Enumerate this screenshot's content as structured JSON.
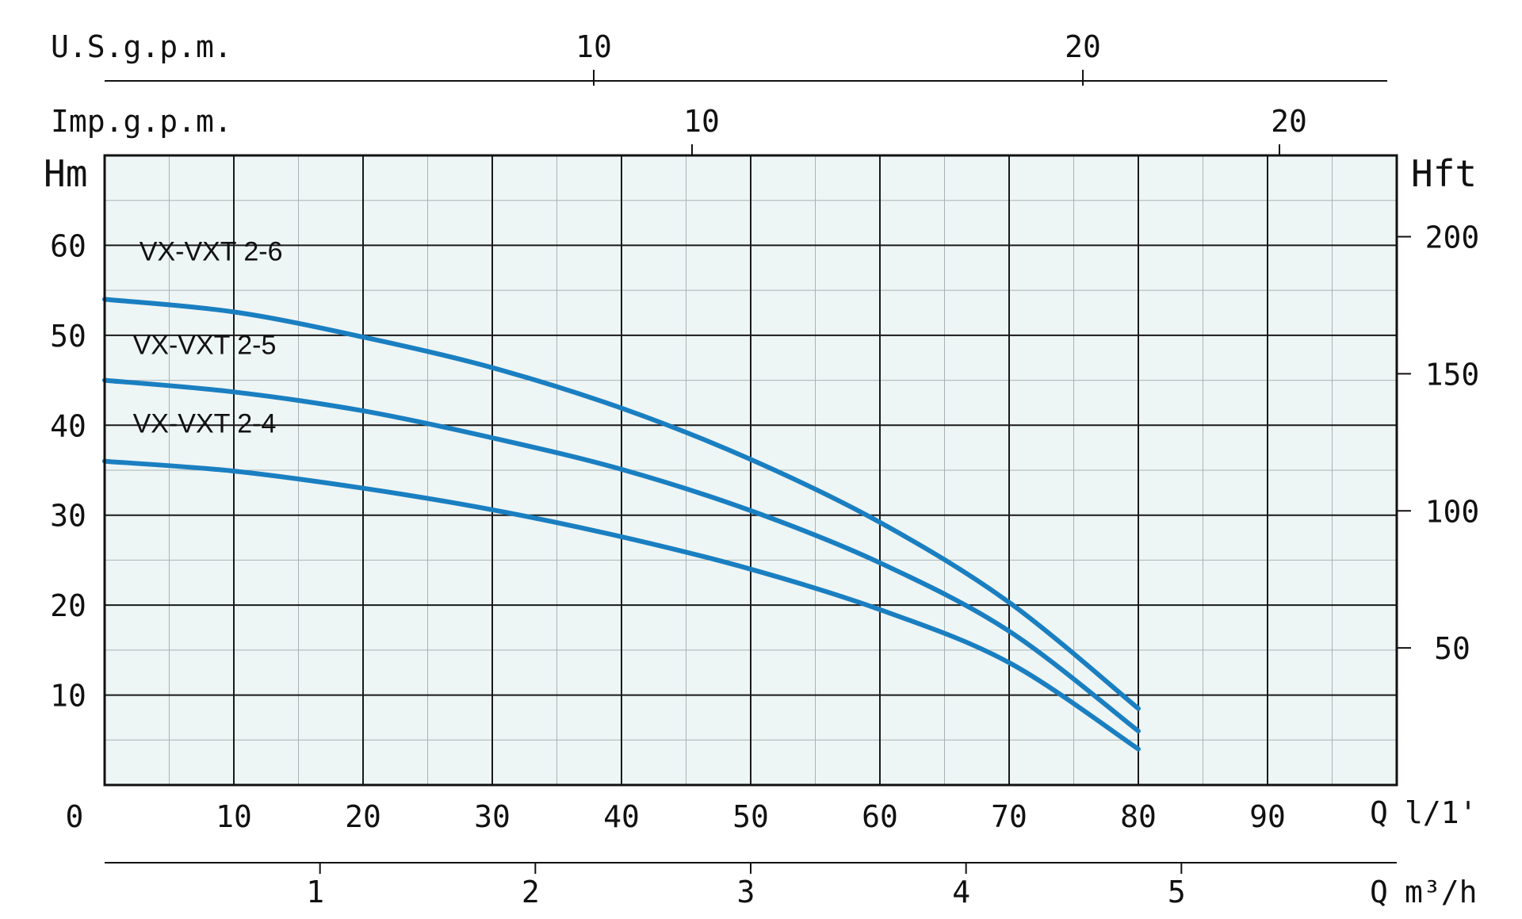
{
  "chart_data": {
    "type": "line",
    "title": "",
    "grid": true,
    "x": {
      "label_symbol": "Q",
      "label_unit": "l/1'",
      "range": [
        0,
        100
      ],
      "ticks": [
        10,
        20,
        30,
        40,
        50,
        60,
        70,
        80,
        90
      ],
      "origin_label": "0"
    },
    "x_secondary_m3h": {
      "label_symbol": "Q",
      "label_unit": "m³/h",
      "ticks": [
        1,
        2,
        3,
        4,
        5
      ]
    },
    "x_top_usgpm": {
      "label": "U.S.g.p.m.",
      "ticks": [
        10,
        20
      ]
    },
    "x_top_impgpm": {
      "label": "Imp.g.p.m.",
      "ticks": [
        10,
        20
      ]
    },
    "y_left": {
      "label": "Hm",
      "range": [
        0,
        70
      ],
      "ticks": [
        10,
        20,
        30,
        40,
        50,
        60
      ]
    },
    "y_right": {
      "label": "Hft",
      "ticks": [
        50,
        100,
        150,
        200
      ]
    },
    "series": [
      {
        "name": "VX-VXT 2-6",
        "color": "#1a7fc1",
        "x": [
          0,
          10,
          20,
          30,
          40,
          50,
          60,
          70,
          80
        ],
        "y": [
          54,
          52.6,
          49.8,
          46.4,
          41.9,
          36.2,
          29.2,
          20.3,
          8.5
        ]
      },
      {
        "name": "VX-VXT 2-5",
        "color": "#1a7fc1",
        "x": [
          0,
          10,
          20,
          30,
          40,
          50,
          60,
          70,
          80
        ],
        "y": [
          45,
          43.7,
          41.6,
          38.6,
          35.1,
          30.5,
          24.7,
          17.1,
          6
        ]
      },
      {
        "name": "VX-VXT 2-4",
        "color": "#1a7fc1",
        "x": [
          0,
          10,
          20,
          30,
          40,
          50,
          60,
          70,
          80
        ],
        "y": [
          36,
          34.9,
          33,
          30.6,
          27.6,
          24,
          19.5,
          13.6,
          4
        ]
      }
    ]
  }
}
